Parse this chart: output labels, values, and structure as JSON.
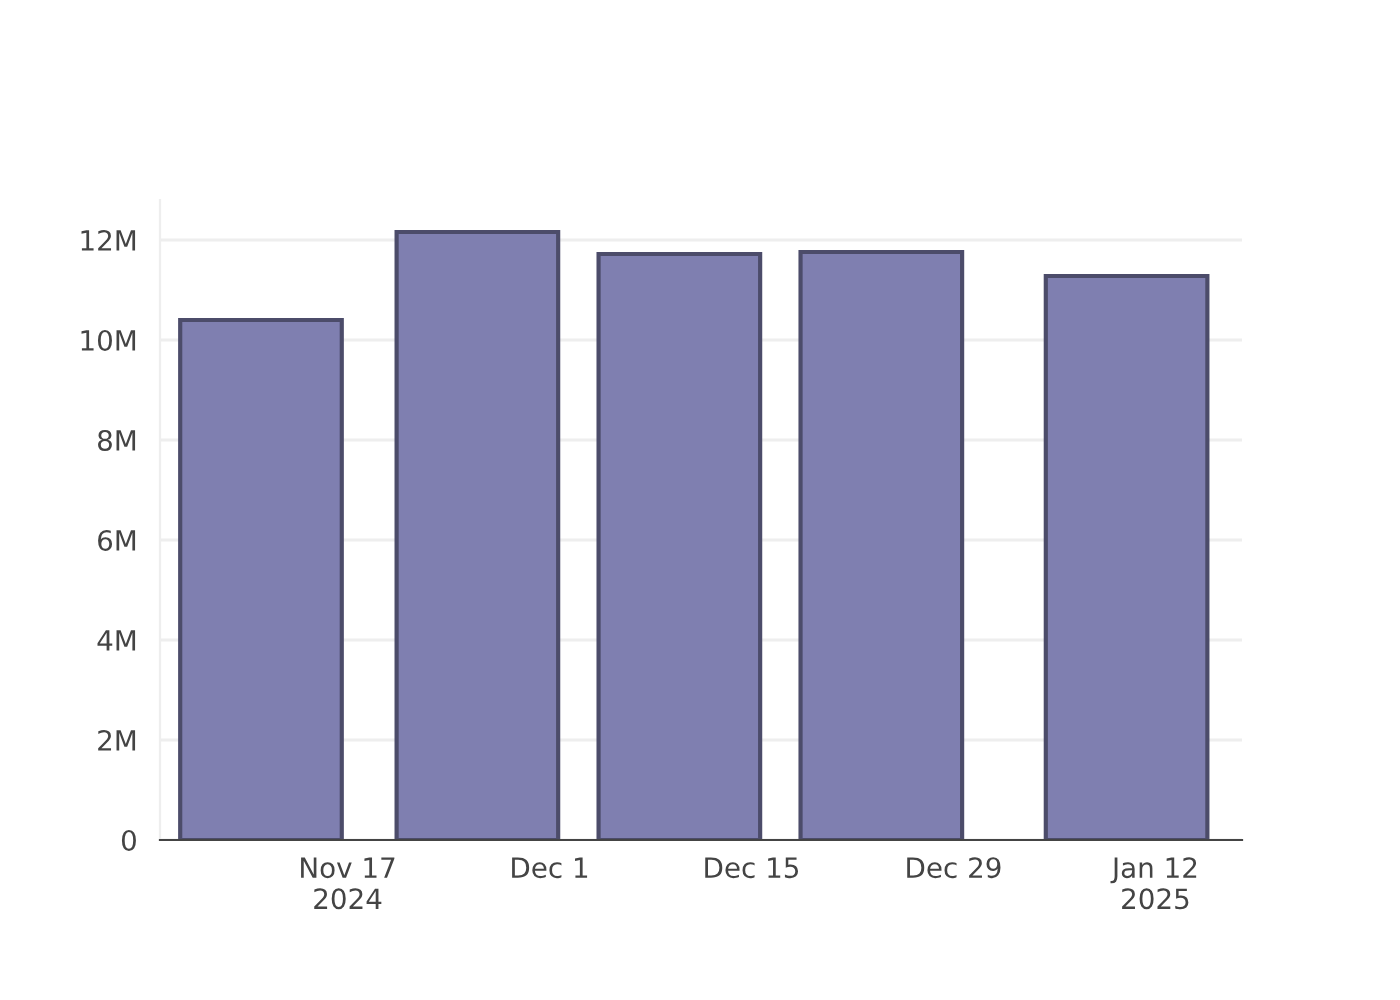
{
  "chart_data": {
    "type": "bar",
    "x": [
      "2024-11-11",
      "2024-11-26",
      "2024-12-10",
      "2024-12-24",
      "2025-01-10"
    ],
    "values": [
      10400000,
      12160000,
      11720000,
      11760000,
      11280000
    ],
    "color": "#7f7fb0",
    "xlim": [
      "2024-11-04",
      "2025-01-18"
    ],
    "xticks": [
      {
        "value": "2024-11-17",
        "label": "Nov 17\n2024"
      },
      {
        "value": "2024-12-01",
        "label": "Dec 1"
      },
      {
        "value": "2024-12-15",
        "label": "Dec 15"
      },
      {
        "value": "2024-12-29",
        "label": "Dec 29"
      },
      {
        "value": "2025-01-12",
        "label": "Jan 12\n2025"
      }
    ],
    "yticks": [
      {
        "value": 0,
        "label": "0"
      },
      {
        "value": 2000000,
        "label": "2M"
      },
      {
        "value": 4000000,
        "label": "4M"
      },
      {
        "value": 6000000,
        "label": "6M"
      },
      {
        "value": 8000000,
        "label": "8M"
      },
      {
        "value": 10000000,
        "label": "10M"
      },
      {
        "value": 12000000,
        "label": "12M"
      }
    ],
    "ylim": [
      0,
      12800000
    ],
    "grid": "y"
  }
}
